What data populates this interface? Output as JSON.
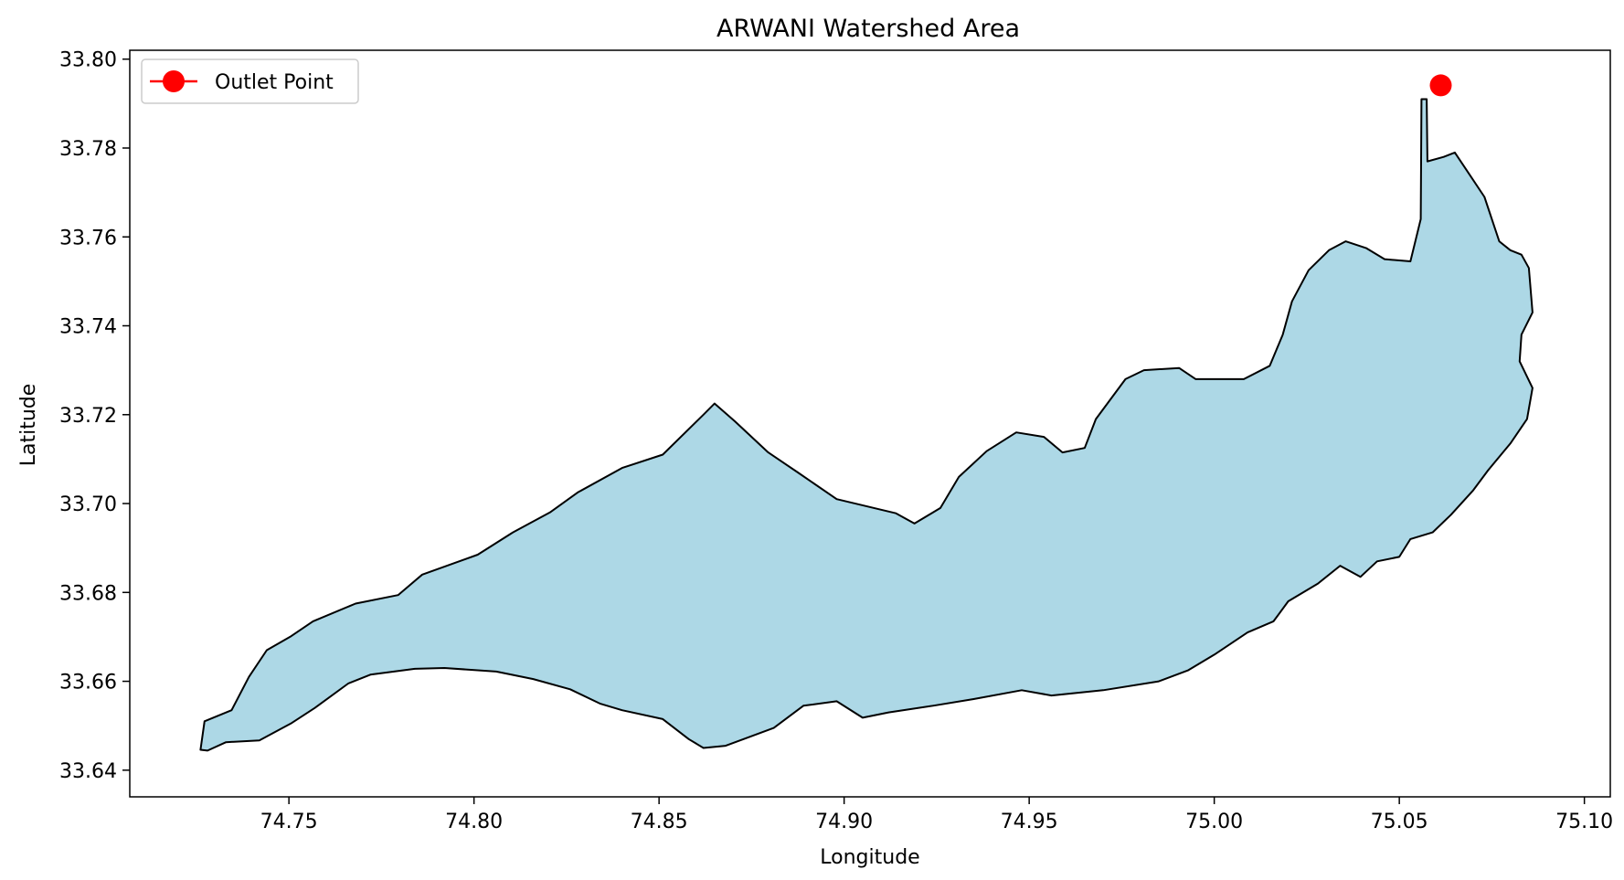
{
  "chart_data": {
    "type": "area",
    "title": "ARWANI Watershed Area",
    "xlabel": "Longitude",
    "ylabel": "Latitude",
    "xlim": [
      74.707,
      75.107
    ],
    "ylim": [
      33.634,
      33.802
    ],
    "xticks": [
      74.75,
      74.8,
      74.85,
      74.9,
      74.95,
      75.0,
      75.05,
      75.1
    ],
    "xtick_labels": [
      "74.75",
      "74.80",
      "74.85",
      "74.90",
      "74.95",
      "75.00",
      "75.05",
      "75.10"
    ],
    "yticks": [
      33.64,
      33.66,
      33.68,
      33.7,
      33.72,
      33.74,
      33.76,
      33.78,
      33.8
    ],
    "ytick_labels": [
      "33.64",
      "33.66",
      "33.68",
      "33.70",
      "33.72",
      "33.74",
      "33.76",
      "33.78",
      "33.80"
    ],
    "grid": false,
    "legend": {
      "position": "upper-left",
      "entries": [
        {
          "label": "Outlet Point",
          "color": "#ff0000",
          "marker": "circle-line"
        }
      ]
    },
    "series": [
      {
        "name": "watershed",
        "fill": "#add8e6",
        "edge": "#000000",
        "points": [
          [
            74.7261,
            33.6446
          ],
          [
            74.7272,
            33.651
          ],
          [
            74.7345,
            33.6535
          ],
          [
            74.7392,
            33.661
          ],
          [
            74.744,
            33.667
          ],
          [
            74.7503,
            33.67
          ],
          [
            74.7565,
            33.6735
          ],
          [
            74.768,
            33.6775
          ],
          [
            74.7795,
            33.6794
          ],
          [
            74.786,
            33.684
          ],
          [
            74.801,
            33.6885
          ],
          [
            74.8105,
            33.6935
          ],
          [
            74.8205,
            33.698
          ],
          [
            74.828,
            33.7025
          ],
          [
            74.84,
            33.708
          ],
          [
            74.851,
            33.711
          ],
          [
            74.862,
            33.72
          ],
          [
            74.865,
            33.7225
          ],
          [
            74.8705,
            33.7185
          ],
          [
            74.8795,
            33.7115
          ],
          [
            74.8875,
            33.707
          ],
          [
            74.898,
            33.701
          ],
          [
            74.914,
            33.6978
          ],
          [
            74.919,
            33.6955
          ],
          [
            74.926,
            33.699
          ],
          [
            74.931,
            33.706
          ],
          [
            74.9385,
            33.7118
          ],
          [
            74.9465,
            33.716
          ],
          [
            74.954,
            33.715
          ],
          [
            74.959,
            33.7115
          ],
          [
            74.965,
            33.7125
          ],
          [
            74.968,
            33.719
          ],
          [
            74.976,
            33.728
          ],
          [
            74.981,
            33.73
          ],
          [
            74.9905,
            33.7305
          ],
          [
            74.995,
            33.728
          ],
          [
            75.008,
            33.728
          ],
          [
            75.015,
            33.731
          ],
          [
            75.0185,
            33.738
          ],
          [
            75.021,
            33.7455
          ],
          [
            75.0255,
            33.7525
          ],
          [
            75.031,
            33.757
          ],
          [
            75.0355,
            33.759
          ],
          [
            75.041,
            33.7575
          ],
          [
            75.046,
            33.755
          ],
          [
            75.053,
            33.7545
          ],
          [
            75.0558,
            33.764
          ],
          [
            75.056,
            33.791
          ],
          [
            75.0574,
            33.791
          ],
          [
            75.0576,
            33.777
          ],
          [
            75.062,
            33.778
          ],
          [
            75.065,
            33.779
          ],
          [
            75.069,
            33.774
          ],
          [
            75.073,
            33.769
          ],
          [
            75.077,
            33.759
          ],
          [
            75.08,
            33.757
          ],
          [
            75.083,
            33.756
          ],
          [
            75.085,
            33.753
          ],
          [
            75.086,
            33.743
          ],
          [
            75.083,
            33.738
          ],
          [
            75.0825,
            33.732
          ],
          [
            75.086,
            33.726
          ],
          [
            75.0845,
            33.719
          ],
          [
            75.08,
            33.7135
          ],
          [
            75.074,
            33.7075
          ],
          [
            75.07,
            33.703
          ],
          [
            75.064,
            33.6975
          ],
          [
            75.059,
            33.6935
          ],
          [
            75.053,
            33.692
          ],
          [
            75.05,
            33.688
          ],
          [
            75.044,
            33.687
          ],
          [
            75.0395,
            33.6835
          ],
          [
            75.034,
            33.686
          ],
          [
            75.028,
            33.682
          ],
          [
            75.02,
            33.678
          ],
          [
            75.016,
            33.6735
          ],
          [
            75.009,
            33.671
          ],
          [
            75.0,
            33.666
          ],
          [
            74.993,
            33.6625
          ],
          [
            74.985,
            33.66
          ],
          [
            74.97,
            33.658
          ],
          [
            74.956,
            33.6568
          ],
          [
            74.948,
            33.658
          ],
          [
            74.935,
            33.656
          ],
          [
            74.924,
            33.6545
          ],
          [
            74.912,
            33.653
          ],
          [
            74.905,
            33.6518
          ],
          [
            74.898,
            33.6555
          ],
          [
            74.889,
            33.6545
          ],
          [
            74.881,
            33.6495
          ],
          [
            74.8745,
            33.6475
          ],
          [
            74.868,
            33.6455
          ],
          [
            74.862,
            33.645
          ],
          [
            74.858,
            33.647
          ],
          [
            74.851,
            33.6515
          ],
          [
            74.84,
            33.6535
          ],
          [
            74.834,
            33.655
          ],
          [
            74.826,
            33.6582
          ],
          [
            74.816,
            33.6605
          ],
          [
            74.806,
            33.6622
          ],
          [
            74.792,
            33.663
          ],
          [
            74.784,
            33.6628
          ],
          [
            74.772,
            33.6615
          ],
          [
            74.766,
            33.6595
          ],
          [
            74.757,
            33.654
          ],
          [
            74.7505,
            33.6505
          ],
          [
            74.742,
            33.6467
          ],
          [
            74.733,
            33.6463
          ],
          [
            74.728,
            33.6444
          ]
        ]
      }
    ],
    "outlet": {
      "label": "Outlet Point",
      "lon": 75.0612,
      "lat": 33.7941,
      "color": "#ff0000"
    }
  }
}
